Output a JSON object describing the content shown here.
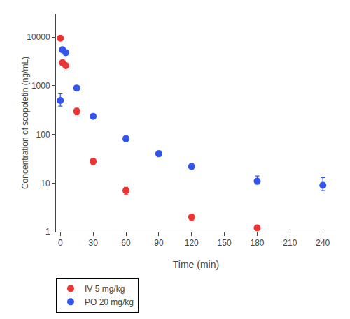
{
  "chart_data": {
    "type": "scatter",
    "xlabel": "Time (min)",
    "ylabel": "Concentration of scopoletin (ng/mL)",
    "log": "y",
    "grid": false,
    "legend": "lower left",
    "xlim": [
      -4,
      252
    ],
    "xticks": [
      0,
      30,
      60,
      90,
      120,
      150,
      180,
      210,
      240
    ],
    "ylim": [
      1,
      30000
    ],
    "yticks": [
      1,
      10,
      100,
      1000,
      10000
    ],
    "series": [
      {
        "name": "IV 5 mg/kg",
        "color": "#EE3333",
        "marker": "circle",
        "x": [
          0,
          2,
          5,
          15,
          30,
          60,
          120,
          180
        ],
        "values": [
          9500,
          3000,
          2600,
          300,
          28,
          7,
          2.0,
          1.2
        ],
        "error_lo": [
          400,
          350,
          280,
          45,
          4,
          1.2,
          0.3,
          0.1
        ],
        "error_hi": [
          400,
          350,
          280,
          45,
          4,
          1.2,
          0.3,
          0.1
        ]
      },
      {
        "name": "PO 20 mg/kg",
        "color": "#3355EE",
        "marker": "circle",
        "x": [
          0,
          2,
          5,
          15,
          30,
          60,
          90,
          120,
          180,
          240
        ],
        "values": [
          500,
          5500,
          4800,
          900,
          235,
          82,
          40,
          22,
          11,
          9
        ],
        "error_lo": [
          120,
          300,
          280,
          110,
          22,
          10,
          4,
          2.5,
          1.5,
          2
        ],
        "error_hi": [
          200,
          300,
          280,
          110,
          22,
          10,
          6,
          3.5,
          3,
          4
        ]
      }
    ]
  }
}
